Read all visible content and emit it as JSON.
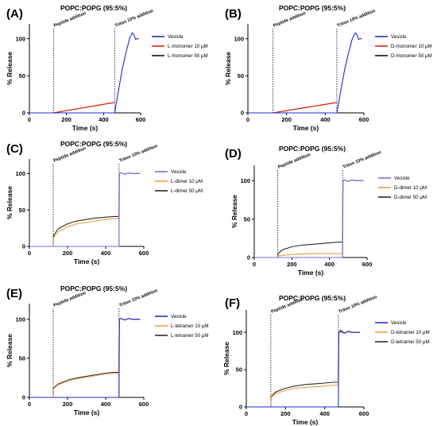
{
  "chart_data": [
    {
      "panel": "(A)",
      "type": "line",
      "title": "POPC:POPG (95:5%)",
      "xlabel": "Time (s)",
      "ylabel": "% Release",
      "xlim": [
        0,
        600
      ],
      "ylim": [
        0,
        120
      ],
      "xticks": [
        0,
        200,
        400,
        600
      ],
      "yticks": [
        0,
        50,
        100
      ],
      "annotations": [
        {
          "text": "Peptide addition",
          "x": 130
        },
        {
          "text": "Triton 10% addition",
          "x": 460
        }
      ],
      "legend_position": "right",
      "series": [
        {
          "name": "Vesicle",
          "color": "#1f2dd6",
          "x": [
            0,
            130,
            460,
            475,
            500,
            520,
            540,
            555,
            565,
            572,
            580,
            590
          ],
          "y": [
            0,
            0,
            0,
            22,
            58,
            80,
            100,
            108,
            105,
            99,
            100,
            100
          ]
        },
        {
          "name": "L-monomer 10 μM",
          "color": "#e8231b",
          "x": [
            0,
            130,
            460
          ],
          "y": [
            0,
            0,
            14
          ]
        },
        {
          "name": "L-monomer 50 μM",
          "color": "#111111",
          "x": [
            0,
            130,
            460
          ],
          "y": [
            0,
            0,
            14
          ]
        }
      ]
    },
    {
      "panel": "(B)",
      "type": "line",
      "title": "POPC:POPG (95:5%)",
      "xlabel": "Time (s)",
      "ylabel": "% Release",
      "xlim": [
        0,
        600
      ],
      "ylim": [
        0,
        120
      ],
      "xticks": [
        0,
        200,
        400,
        600
      ],
      "yticks": [
        0,
        50,
        100
      ],
      "annotations": [
        {
          "text": "Peptide addition",
          "x": 130
        },
        {
          "text": "Triton 10% addition",
          "x": 460
        }
      ],
      "legend_position": "right",
      "series": [
        {
          "name": "Vesicle",
          "color": "#1f2dd6",
          "x": [
            0,
            130,
            460,
            475,
            500,
            520,
            540,
            555,
            565,
            572,
            580,
            590
          ],
          "y": [
            0,
            0,
            0,
            22,
            58,
            80,
            100,
            108,
            105,
            99,
            100,
            100
          ]
        },
        {
          "name": "D-monomer 10 μM",
          "color": "#e8231b",
          "x": [
            0,
            130,
            460
          ],
          "y": [
            0,
            0,
            14
          ]
        },
        {
          "name": "D-monomer 50 μM",
          "color": "#111111",
          "x": [
            0,
            130,
            460
          ],
          "y": [
            0,
            0,
            14
          ]
        }
      ]
    },
    {
      "panel": "(C)",
      "type": "line",
      "title": "POPC:POPG (95:5%)",
      "xlabel": "Time (s)",
      "ylabel": "% Release",
      "xlim": [
        0,
        600
      ],
      "ylim": [
        0,
        120
      ],
      "xticks": [
        0,
        200,
        400,
        600
      ],
      "yticks": [
        0,
        50,
        100
      ],
      "annotations": [
        {
          "text": "Peptide addition",
          "x": 125
        },
        {
          "text": "Triton 10% addition",
          "x": 470
        }
      ],
      "legend_position": "right",
      "series": [
        {
          "name": "Vesicle",
          "color": "#6f6ff0",
          "x": [
            0,
            470,
            472,
            480,
            500,
            520,
            540,
            560,
            580
          ],
          "y": [
            0,
            0,
            100,
            101,
            99,
            101,
            100,
            100,
            100
          ]
        },
        {
          "name": "L-dimer 10 μM",
          "color": "#f59a44",
          "x": [
            0,
            125,
            127,
            150,
            200,
            250,
            300,
            350,
            400,
            440,
            468,
            472,
            480,
            500,
            520,
            540,
            560,
            580
          ],
          "y": [
            0,
            0,
            12,
            20,
            27,
            31,
            33,
            35,
            37,
            38,
            38,
            100,
            101,
            99,
            101,
            100,
            100,
            100
          ]
        },
        {
          "name": "L-dimer 50 μM",
          "color": "#2c2c2c",
          "x": [
            0,
            125,
            127,
            150,
            200,
            250,
            300,
            350,
            400,
            440,
            468,
            472,
            480,
            500,
            520,
            540,
            560,
            580
          ],
          "y": [
            0,
            0,
            15,
            24,
            31,
            35,
            37,
            39,
            40,
            41,
            41,
            100,
            101,
            99,
            101,
            100,
            100,
            100
          ]
        }
      ]
    },
    {
      "panel": "(D)",
      "type": "line",
      "title": "POPC:POPG (95:5%)",
      "xlabel": "Time (s)",
      "ylabel": "% Release",
      "xlim": [
        0,
        600
      ],
      "ylim": [
        0,
        120
      ],
      "xticks": [
        0,
        200,
        400,
        600
      ],
      "yticks": [
        0,
        50,
        100
      ],
      "annotations": [
        {
          "text": "Peptide addition",
          "x": 125
        },
        {
          "text": "Triton 10% addition",
          "x": 470
        }
      ],
      "legend_position": "right",
      "series": [
        {
          "name": "Vesicle",
          "color": "#6f6ff0",
          "x": [
            0,
            470,
            472,
            480,
            500,
            520,
            540,
            560,
            580
          ],
          "y": [
            0,
            0,
            100,
            101,
            99,
            101,
            100,
            100,
            100
          ]
        },
        {
          "name": "D-dimer 10 μM",
          "color": "#f59a44",
          "x": [
            0,
            125,
            127,
            200,
            300,
            400,
            468,
            472,
            480,
            500,
            520,
            540,
            560,
            580
          ],
          "y": [
            0,
            0,
            2,
            4,
            5,
            5,
            5,
            100,
            101,
            99,
            101,
            100,
            100,
            100
          ]
        },
        {
          "name": "D-dimer 50 μM",
          "color": "#2c2c2c",
          "x": [
            0,
            125,
            127,
            150,
            200,
            250,
            300,
            350,
            400,
            440,
            468,
            472,
            480,
            500,
            520,
            540,
            560,
            580
          ],
          "y": [
            0,
            0,
            5,
            10,
            14,
            16,
            17,
            18,
            19,
            20,
            20,
            100,
            101,
            99,
            101,
            100,
            100,
            100
          ]
        }
      ]
    },
    {
      "panel": "(E)",
      "type": "line",
      "title": "POPC:POPG (95:5%)",
      "xlabel": "Time (s)",
      "ylabel": "% Release",
      "xlim": [
        0,
        600
      ],
      "ylim": [
        0,
        120
      ],
      "xticks": [
        0,
        200,
        400,
        600
      ],
      "yticks": [
        0,
        50,
        100
      ],
      "annotations": [
        {
          "text": "Peptide addition",
          "x": 125
        },
        {
          "text": "Triton 10% addition",
          "x": 470
        }
      ],
      "legend_position": "right",
      "series": [
        {
          "name": "Vesicle",
          "color": "#1f2dd6",
          "x": [
            0,
            470,
            472,
            480,
            500,
            520,
            540,
            560,
            580
          ],
          "y": [
            0,
            0,
            100,
            101,
            99,
            101,
            100,
            100,
            100
          ]
        },
        {
          "name": "L-tetramer 10 μM",
          "color": "#f59a44",
          "x": [
            0,
            125,
            127,
            150,
            200,
            250,
            300,
            350,
            400,
            440,
            468,
            472,
            480,
            500,
            520,
            540,
            560,
            580
          ],
          "y": [
            0,
            0,
            11,
            16,
            21,
            24,
            26,
            28,
            30,
            31,
            31,
            100,
            101,
            99,
            101,
            100,
            100,
            100
          ]
        },
        {
          "name": "L-tetramer 50 μM",
          "color": "#2c2c2c",
          "x": [
            0,
            125,
            127,
            150,
            200,
            250,
            300,
            350,
            400,
            440,
            468,
            472,
            480,
            500,
            520,
            540,
            560,
            580
          ],
          "y": [
            0,
            0,
            12,
            17,
            22,
            25,
            27,
            29,
            31,
            32,
            32,
            100,
            101,
            99,
            101,
            100,
            100,
            100
          ]
        }
      ]
    },
    {
      "panel": "(F)",
      "type": "line",
      "title": "POPC:POPG (95:5%)",
      "xlabel": "Time (s)",
      "ylabel": "% Release",
      "xlim": [
        0,
        600
      ],
      "ylim": [
        0,
        130
      ],
      "xticks": [
        0,
        200,
        400,
        600
      ],
      "yticks": [
        0,
        50,
        100
      ],
      "annotations": [
        {
          "text": "Peptide addition",
          "x": 125
        },
        {
          "text": "Triton 10% addition",
          "x": 470
        }
      ],
      "legend_position": "right",
      "series": [
        {
          "name": "Vesicle",
          "color": "#1f2dd6",
          "x": [
            0,
            470,
            472,
            480,
            500,
            520,
            540,
            560,
            580
          ],
          "y": [
            0,
            0,
            100,
            102,
            99,
            101,
            100,
            100,
            100
          ]
        },
        {
          "name": "D-tetramer 10 μM",
          "color": "#f59a44",
          "x": [
            0,
            125,
            127,
            150,
            200,
            250,
            300,
            350,
            400,
            440,
            468,
            472,
            480,
            500,
            520,
            540,
            560,
            580
          ],
          "y": [
            0,
            0,
            13,
            18,
            22,
            25,
            26,
            27,
            28,
            29,
            29,
            100,
            104,
            99,
            102,
            100,
            100,
            100
          ]
        },
        {
          "name": "D-tetramer 50 μM",
          "color": "#2c2c2c",
          "x": [
            0,
            125,
            127,
            150,
            200,
            250,
            300,
            350,
            400,
            440,
            468,
            472,
            480,
            500,
            520,
            540,
            560,
            580
          ],
          "y": [
            0,
            0,
            14,
            20,
            25,
            28,
            30,
            31,
            32,
            33,
            33,
            100,
            101,
            99,
            101,
            100,
            100,
            100
          ]
        }
      ]
    }
  ]
}
